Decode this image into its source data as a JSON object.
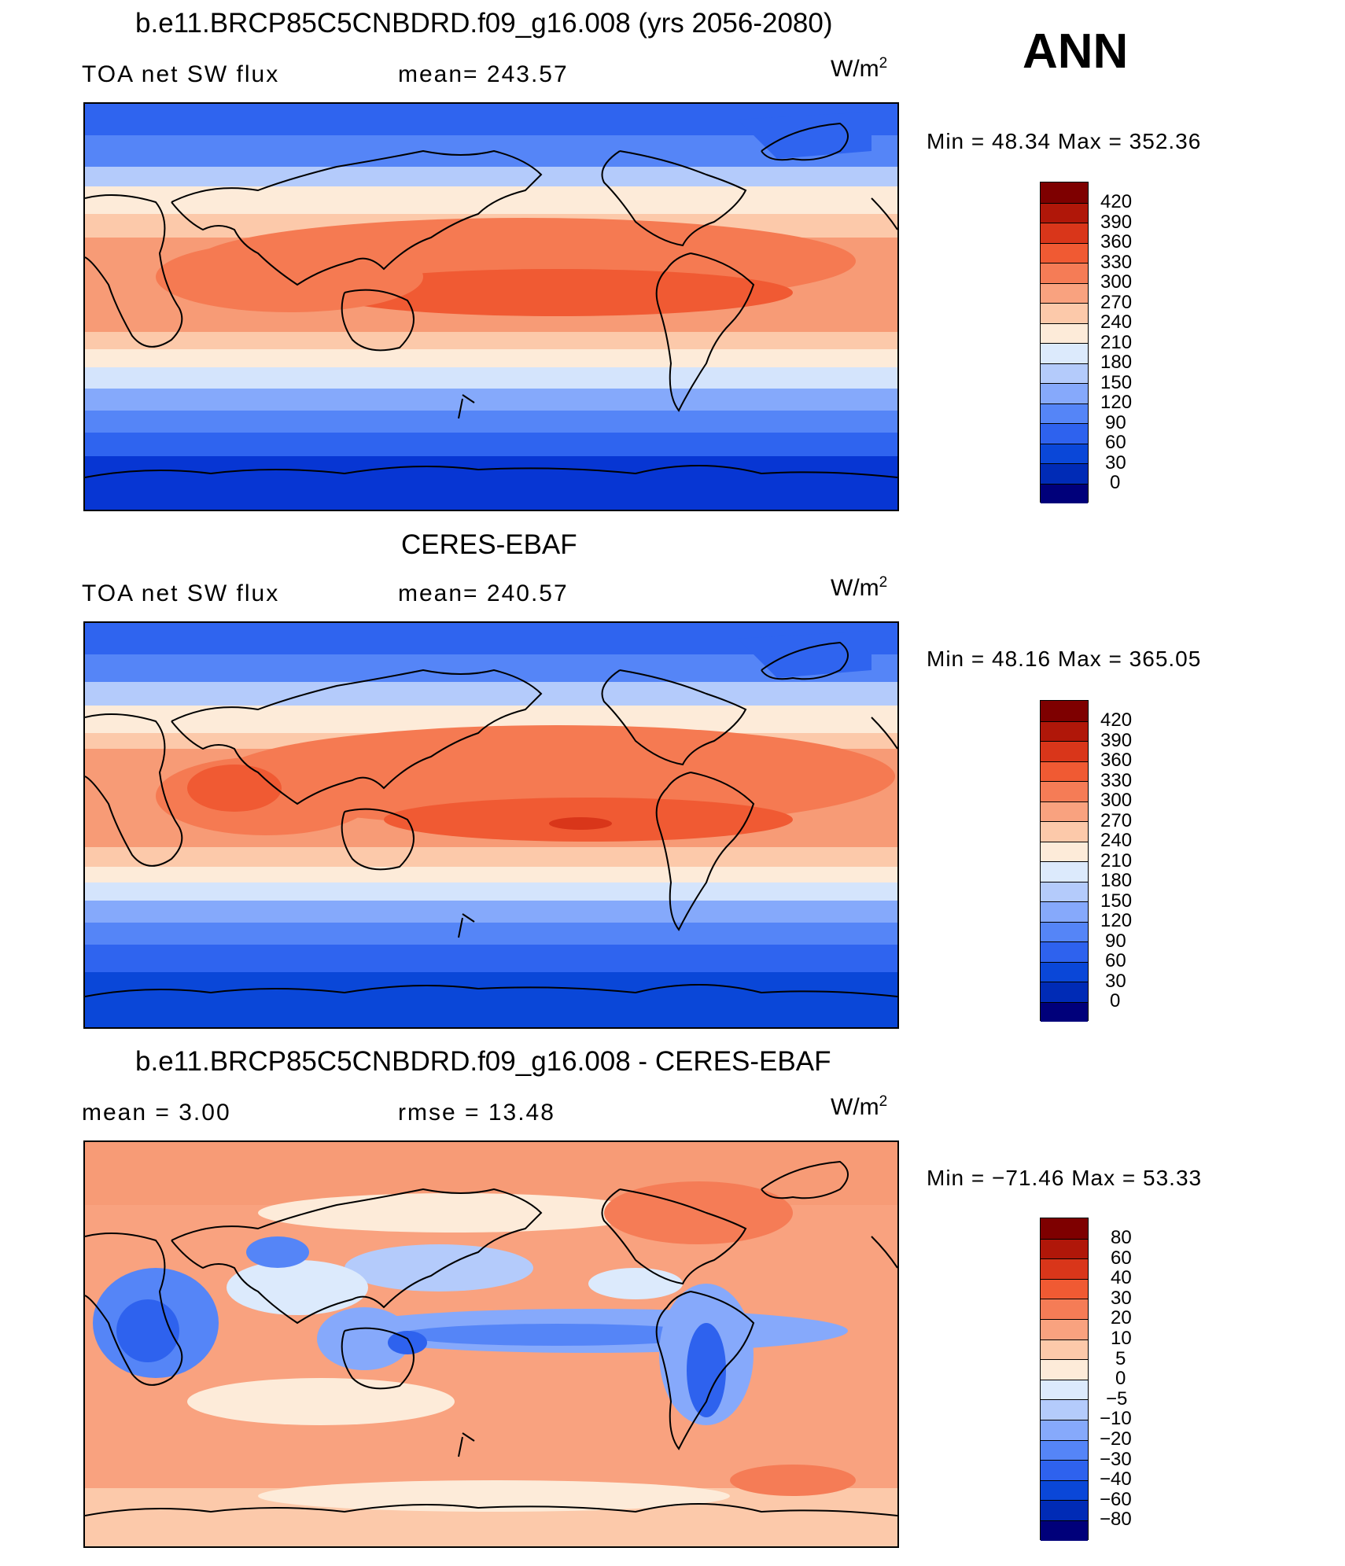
{
  "header": {
    "season": "ANN"
  },
  "panels": [
    {
      "id": "model",
      "title": "b.e11.BRCP85C5CNBDRD.f09_g16.008 (yrs 2056-2080)",
      "left_text": "TOA net SW flux",
      "mid_text": "mean= 243.57",
      "unit": "W/m",
      "unit_sup": "2",
      "minmax": "Min =   48.34 Max = 352.36",
      "colorbar_labels": [
        "420",
        "390",
        "360",
        "330",
        "300",
        "270",
        "240",
        "210",
        "180",
        "150",
        "120",
        "90",
        "60",
        "30",
        "0"
      ]
    },
    {
      "id": "obs",
      "title": "CERES-EBAF",
      "left_text": "TOA net SW flux",
      "mid_text": "mean= 240.57",
      "unit": "W/m",
      "unit_sup": "2",
      "minmax": "Min =   48.16 Max = 365.05",
      "colorbar_labels": [
        "420",
        "390",
        "360",
        "330",
        "300",
        "270",
        "240",
        "210",
        "180",
        "150",
        "120",
        "90",
        "60",
        "30",
        "0"
      ]
    },
    {
      "id": "diff",
      "title": "b.e11.BRCP85C5CNBDRD.f09_g16.008 - CERES-EBAF",
      "left_text": "mean =    3.00",
      "mid_text": "rmse =   13.48",
      "unit": "W/m",
      "unit_sup": "2",
      "minmax": "Min = −71.46 Max =   53.33",
      "colorbar_labels": [
        "80",
        "60",
        "40",
        "30",
        "20",
        "10",
        "5",
        "0",
        "−5",
        "−10",
        "−20",
        "−30",
        "−40",
        "−60",
        "−80"
      ]
    }
  ],
  "colorbar_colors": [
    "#00007a",
    "#002bb6",
    "#0a47d8",
    "#2e62ee",
    "#5585f7",
    "#86a9fb",
    "#b4cbfb",
    "#dceafc",
    "#fdebd9",
    "#fcc9aa",
    "#f9a27f",
    "#f57c56",
    "#f05a33",
    "#d9361a",
    "#b01709",
    "#7e0000"
  ],
  "map_colors": {
    "deep_blue": "#0736d3",
    "mid_blue": "#2f64ef",
    "light_blue": "#85a9fb",
    "pale_blue": "#d4e4fc",
    "cream": "#fdebd9",
    "peach": "#fcc9aa",
    "salmon": "#f79b76",
    "orange": "#f57a52",
    "red_orange": "#f05a33",
    "coast": "#000000"
  }
}
